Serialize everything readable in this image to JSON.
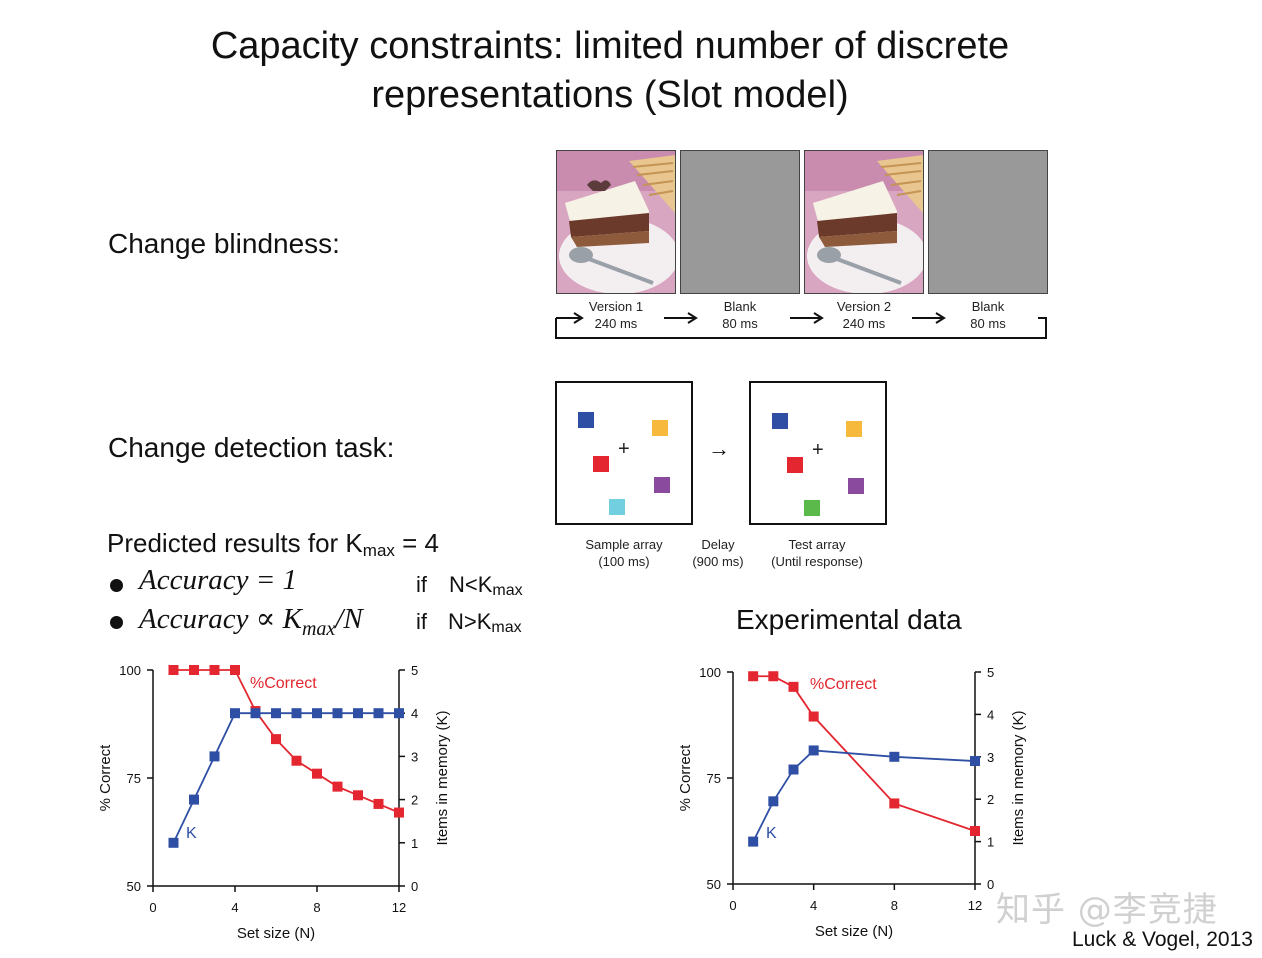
{
  "title": {
    "line1": "Capacity constraints: limited number of discrete",
    "line2": "representations (Slot model)"
  },
  "change_blindness": {
    "label": "Change blindness:",
    "frames": [
      {
        "name": "Version 1",
        "duration": "240 ms",
        "kind": "image"
      },
      {
        "name": "Blank",
        "duration": "80 ms",
        "kind": "blank"
      },
      {
        "name": "Version 2",
        "duration": "240 ms",
        "kind": "image"
      },
      {
        "name": "Blank",
        "duration": "80 ms",
        "kind": "blank"
      }
    ]
  },
  "change_detection": {
    "label": "Change detection task:",
    "sample": {
      "title": "Sample array",
      "duration": "(100 ms)"
    },
    "delay": {
      "title": "Delay",
      "duration": "(900 ms)"
    },
    "test": {
      "title": "Test array",
      "duration": "(Until response)"
    },
    "plus": "+",
    "arrow": "→",
    "colors": {
      "blue": "#2f4fa5",
      "yellow": "#f6b93b",
      "red": "#e3262f",
      "purple": "#8a4a9e",
      "cyan": "#72cfe0",
      "green": "#5bb94b"
    }
  },
  "predicted": {
    "heading_prefix": "Predicted results for K",
    "heading_sub": "max",
    "heading_suffix": " = 4",
    "rule1_math": "Accuracy = 1",
    "rule1_if": "if",
    "rule1_cond_prefix": "N<K",
    "rule1_cond_sub": "max",
    "rule2_math_prefix": "Accuracy ∝ K",
    "rule2_math_sub": "max",
    "rule2_math_suffix": "/N",
    "rule2_if": "if",
    "rule2_cond_prefix": "N>K",
    "rule2_cond_sub": "max"
  },
  "experimental_heading": "Experimental data",
  "chart_data": [
    {
      "type": "line",
      "title": "Predicted",
      "xlabel": "Set size (N)",
      "ylabel_left": "% Correct",
      "ylabel_right": "Items in memory (K)",
      "xlim": [
        0,
        12
      ],
      "ylim_left": [
        50,
        100
      ],
      "ylim_right": [
        0,
        5
      ],
      "xticks": [
        "0",
        "4",
        "8",
        "12"
      ],
      "yticks_left": [
        "50",
        "75",
        "100"
      ],
      "yticks_right": [
        "0",
        "1",
        "2",
        "3",
        "4",
        "5"
      ],
      "series": [
        {
          "name": "%Correct",
          "axis": "left",
          "color": "#e3262f",
          "x": [
            1,
            2,
            3,
            4,
            5,
            6,
            7,
            8,
            9,
            10,
            11,
            12
          ],
          "values": [
            100,
            100,
            100,
            100,
            90.5,
            84,
            79,
            76,
            73,
            71,
            69,
            67
          ]
        },
        {
          "name": "K",
          "axis": "right",
          "color": "#2f4fa5",
          "x": [
            1,
            2,
            3,
            4,
            5,
            6,
            7,
            8,
            9,
            10,
            11,
            12
          ],
          "values": [
            1,
            2,
            3,
            4,
            4,
            4,
            4,
            4,
            4,
            4,
            4,
            4
          ]
        }
      ]
    },
    {
      "type": "line",
      "title": "Experimental data",
      "xlabel": "Set size (N)",
      "ylabel_left": "% Correct",
      "ylabel_right": "Items in memory (K)",
      "xlim": [
        0,
        12
      ],
      "ylim_left": [
        50,
        100
      ],
      "ylim_right": [
        0,
        5
      ],
      "xticks": [
        "0",
        "4",
        "8",
        "12"
      ],
      "yticks_left": [
        "50",
        "75",
        "100"
      ],
      "yticks_right": [
        "0",
        "1",
        "2",
        "3",
        "4",
        "5"
      ],
      "series": [
        {
          "name": "%Correct",
          "axis": "left",
          "color": "#e3262f",
          "x": [
            1,
            2,
            3,
            4,
            8,
            12
          ],
          "values": [
            99,
            99,
            96.5,
            89.5,
            69,
            62.5
          ]
        },
        {
          "name": "K",
          "axis": "right",
          "color": "#2f4fa5",
          "x": [
            1,
            2,
            3,
            4,
            8,
            12
          ],
          "values": [
            1,
            1.95,
            2.7,
            3.15,
            3.0,
            2.9
          ]
        }
      ]
    }
  ],
  "watermark": "知乎 @李竞捷",
  "citation": "Luck & Vogel, 2013"
}
